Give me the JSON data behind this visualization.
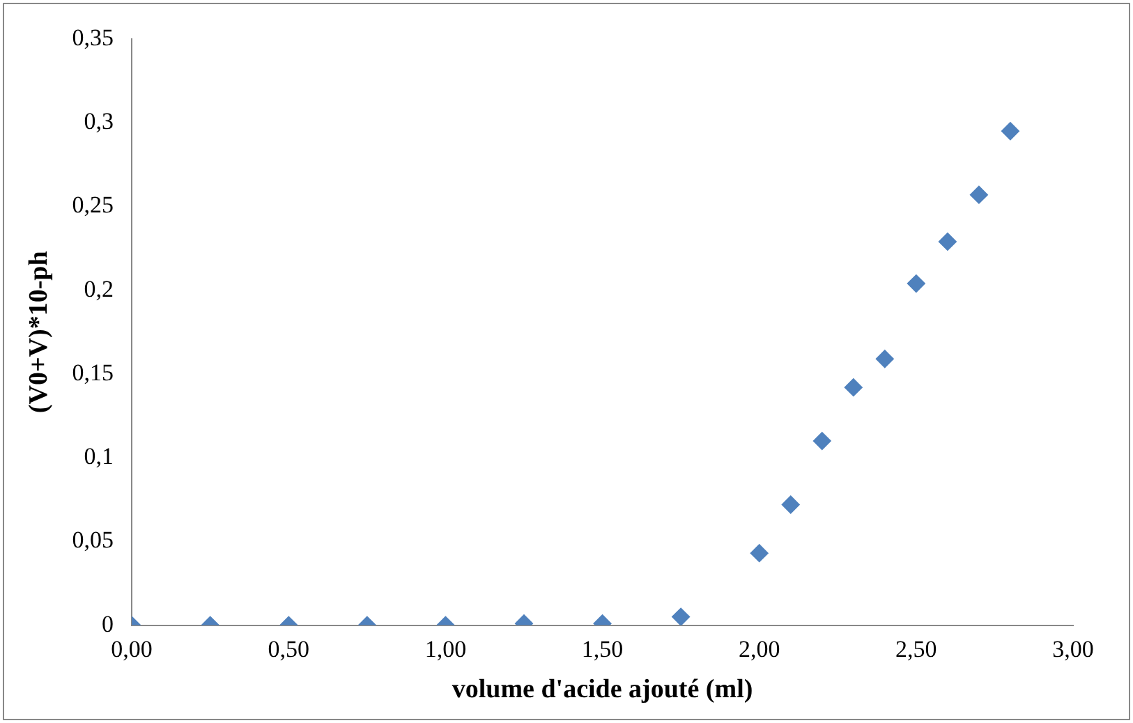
{
  "chart_data": {
    "type": "scatter",
    "xlabel": "volume d'acide ajouté (ml)",
    "ylabel": "(V0+V)*10-ph",
    "x": [
      0,
      0.25,
      0.5,
      0.75,
      1,
      1.25,
      1.5,
      1.75,
      2,
      2.1,
      2.2,
      2.3,
      2.4,
      2.5,
      2.6,
      2.7,
      2.8
    ],
    "series": [
      {
        "color": "#4f81bd",
        "values": [
          0,
          0,
          0,
          0,
          0,
          0.001,
          0.001,
          0.005,
          0.043,
          0.072,
          0.11,
          0.142,
          0.159,
          0.204,
          0.229,
          0.257,
          0.295
        ]
      }
    ],
    "xlim": [
      0,
      3
    ],
    "xticks": [
      {
        "value": 0,
        "label": "0,00"
      },
      {
        "value": 0.5,
        "label": "0,50"
      },
      {
        "value": 1,
        "label": "1,00"
      },
      {
        "value": 1.5,
        "label": "1,50"
      },
      {
        "value": 2,
        "label": "2,00"
      },
      {
        "value": 2.5,
        "label": "2,50"
      },
      {
        "value": 3,
        "label": "3,00"
      }
    ],
    "ylim": [
      0,
      0.35
    ],
    "yticks": [
      0,
      {
        "value": 0.05,
        "label": "0,05"
      },
      {
        "value": 0.1,
        "label": "0,1"
      },
      {
        "value": 0.15,
        "label": "0,15"
      },
      {
        "value": 0.2,
        "label": "0,2"
      },
      {
        "value": 0.25,
        "label": "0,25"
      },
      {
        "value": 0.3,
        "label": "0,3"
      },
      {
        "value": 0.35,
        "label": "0,35"
      }
    ],
    "grid": false,
    "legend": false,
    "marker": "diamond"
  }
}
